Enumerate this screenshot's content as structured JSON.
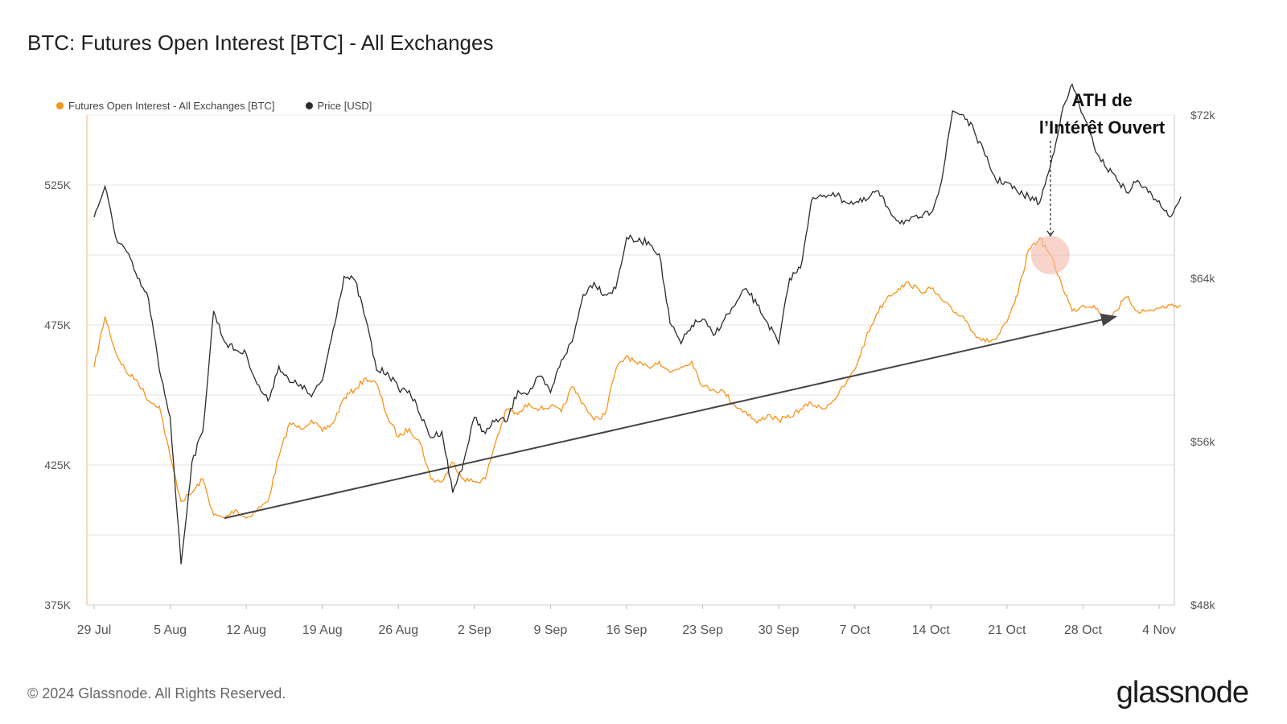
{
  "title": "BTC: Futures Open Interest [BTC] - All Exchanges",
  "footer": "© 2024 Glassnode. All Rights Reserved.",
  "logo": "glassnode",
  "annotation": {
    "line1": "ATH de",
    "line2": "l’Intérêt Ouvert"
  },
  "colors": {
    "oi": "#f7931a",
    "price": "#2b2b2b",
    "trend": "#444444",
    "highlight": "#f5b8a8"
  },
  "chart_data": {
    "type": "line",
    "legend": [
      {
        "name": "Futures Open Interest - All Exchanges [BTC]",
        "color": "#f7931a"
      },
      {
        "name": "Price [USD]",
        "color": "#2b2b2b"
      }
    ],
    "x_ticks": [
      "29 Jul",
      "5 Aug",
      "12 Aug",
      "19 Aug",
      "26 Aug",
      "2 Sep",
      "9 Sep",
      "16 Sep",
      "23 Sep",
      "30 Sep",
      "7 Oct",
      "14 Oct",
      "21 Oct",
      "28 Oct",
      "4 Nov"
    ],
    "y_left": {
      "ticks": [
        "375K",
        "425K",
        "475K",
        "525K"
      ],
      "range": [
        375000,
        550000
      ]
    },
    "y_right": {
      "ticks": [
        "$48k",
        "$56k",
        "$64k",
        "$72k"
      ],
      "range": [
        48000,
        72000
      ]
    },
    "series": [
      {
        "name": "Futures Open Interest - All Exchanges [BTC]",
        "day": [
          0,
          1,
          2,
          3,
          4,
          5,
          6,
          7,
          8,
          9,
          10,
          11,
          12,
          13,
          14,
          15,
          16,
          17,
          18,
          19,
          20,
          21,
          22,
          23,
          24,
          25,
          26,
          27,
          28,
          29,
          30,
          31,
          32,
          33,
          34,
          35,
          36,
          37,
          38,
          39,
          40,
          41,
          42,
          43,
          44,
          45,
          46,
          47,
          48,
          49,
          50,
          51,
          52,
          53,
          54,
          55,
          56,
          57,
          58,
          59,
          60,
          61,
          62,
          63,
          64,
          65,
          66,
          67,
          68,
          69,
          70,
          71,
          72,
          73,
          74,
          75,
          76,
          77,
          78,
          79,
          80,
          81,
          82,
          83,
          84,
          85,
          86,
          87,
          88,
          89,
          90,
          91,
          92,
          93,
          94,
          95,
          96,
          97,
          98,
          99,
          100
        ],
        "values": [
          460000,
          478000,
          465000,
          458000,
          455000,
          448000,
          446000,
          428000,
          412000,
          415000,
          420000,
          407000,
          406000,
          409000,
          406000,
          409000,
          412000,
          428000,
          440000,
          438000,
          441000,
          437000,
          440000,
          449000,
          452000,
          456000,
          454000,
          442000,
          435000,
          438000,
          433000,
          420000,
          419000,
          426000,
          420000,
          419000,
          420000,
          434000,
          445000,
          443000,
          447000,
          445000,
          446000,
          444000,
          453000,
          447000,
          441000,
          443000,
          459000,
          464000,
          461000,
          460000,
          462000,
          458000,
          460000,
          462000,
          453000,
          452000,
          451000,
          446000,
          444000,
          440000,
          443000,
          441000,
          442000,
          445000,
          447000,
          445000,
          448000,
          453000,
          459000,
          470000,
          479000,
          485000,
          488000,
          490000,
          487000,
          488000,
          484000,
          480000,
          478000,
          472000,
          469000,
          470000,
          476000,
          486000,
          502000,
          506000,
          500000,
          490000,
          480000,
          482000,
          482000,
          477000,
          480000,
          485000,
          480000,
          480000,
          481000,
          482000,
          482000
        ]
      },
      {
        "name": "Price [USD]",
        "day": [
          0,
          1,
          2,
          3,
          4,
          5,
          6,
          7,
          8,
          9,
          10,
          11,
          12,
          13,
          14,
          15,
          16,
          17,
          18,
          19,
          20,
          21,
          22,
          23,
          24,
          25,
          26,
          27,
          28,
          29,
          30,
          31,
          32,
          33,
          34,
          35,
          36,
          37,
          38,
          39,
          40,
          41,
          42,
          43,
          44,
          45,
          46,
          47,
          48,
          49,
          50,
          51,
          52,
          53,
          54,
          55,
          56,
          57,
          58,
          59,
          60,
          61,
          62,
          63,
          64,
          65,
          66,
          67,
          68,
          69,
          70,
          71,
          72,
          73,
          74,
          75,
          76,
          77,
          78,
          79,
          80,
          81,
          82,
          83,
          84,
          85,
          86,
          87,
          88,
          89,
          90,
          91,
          92,
          93,
          94,
          95,
          96,
          97,
          98,
          99,
          100
        ],
        "values": [
          67000,
          68500,
          66000,
          65300,
          64000,
          63000,
          59500,
          57200,
          50000,
          55000,
          56500,
          62400,
          60900,
          60500,
          60300,
          58800,
          58000,
          59700,
          58900,
          58800,
          58200,
          59000,
          61500,
          64100,
          63900,
          62000,
          59500,
          59400,
          58600,
          58500,
          57300,
          56200,
          56500,
          53500,
          55000,
          57200,
          56400,
          57100,
          57000,
          58500,
          58400,
          59200,
          58400,
          60000,
          60900,
          63200,
          63800,
          63200,
          63500,
          66000,
          65800,
          65800,
          65200,
          61800,
          60800,
          61700,
          62000,
          61200,
          62000,
          62700,
          63500,
          62700,
          61800,
          60800,
          64000,
          64500,
          67800,
          68000,
          68200,
          67800,
          67700,
          67800,
          68300,
          67500,
          66800,
          66800,
          67000,
          67200,
          68800,
          72200,
          72000,
          71200,
          70000,
          68800,
          68700,
          68200,
          68000,
          67700,
          69500,
          72000,
          73500,
          72000,
          70500,
          69500,
          69000,
          68200,
          68800,
          68200,
          67800,
          67000,
          68000
        ]
      }
    ],
    "trend": {
      "from": {
        "day": 12,
        "oi": 406000
      },
      "to": {
        "day": 94,
        "oi": 478000
      }
    },
    "highlight": {
      "day": 88,
      "oi": 500000
    },
    "grid": "horizontal"
  }
}
